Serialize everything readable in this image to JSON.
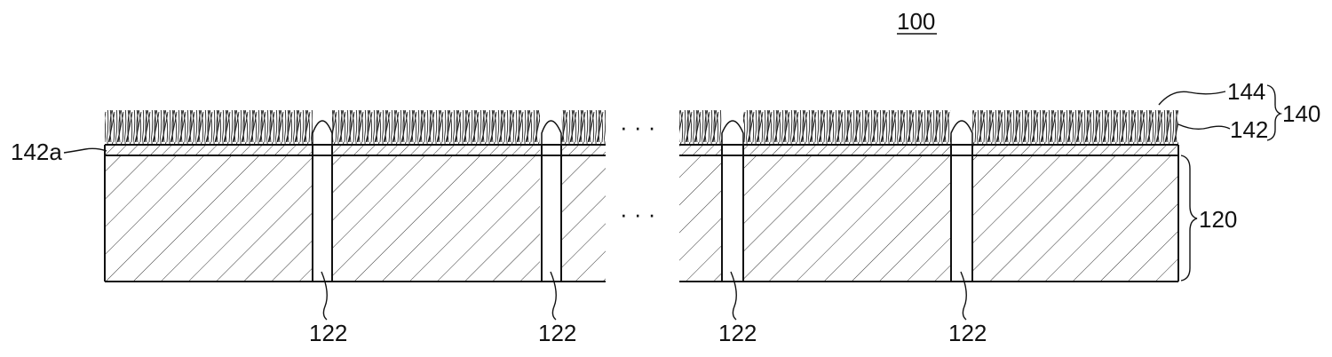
{
  "figure": {
    "ref_label": "100",
    "labels": {
      "coating_layer_group": "140",
      "surface_layer": "144",
      "base_coating": "142",
      "base_coating_interface": "142a",
      "substrate": "120",
      "channel": "122"
    },
    "ellipsis": "· · ·"
  }
}
